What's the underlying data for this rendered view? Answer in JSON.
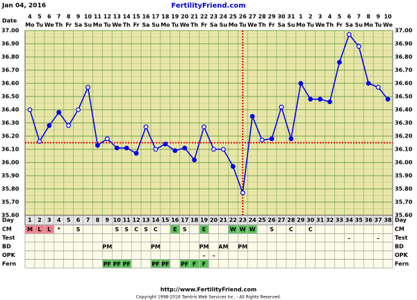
{
  "header": {
    "date": "Jan 04, 2016",
    "site": "FertilityFriend.com"
  },
  "footer": {
    "url": "http://www.FertilityFriend.com",
    "copyright": "Copyright 1998-2016 Tamtris Web Services Inc. - All Rights Reserved."
  },
  "chart_data": {
    "type": "line",
    "date_label": "Date",
    "day_label": "Day",
    "dates": [
      4,
      5,
      6,
      7,
      8,
      9,
      10,
      11,
      12,
      13,
      14,
      15,
      16,
      17,
      18,
      19,
      20,
      21,
      22,
      23,
      24,
      25,
      26,
      27,
      28,
      29,
      30,
      31,
      1,
      2,
      3,
      4,
      5,
      6,
      7,
      8,
      9,
      10
    ],
    "weekdays": [
      "Mo",
      "Tu",
      "We",
      "Th",
      "Fr",
      "Sa",
      "Su",
      "Mo",
      "Tu",
      "We",
      "Th",
      "Fr",
      "Sa",
      "Su",
      "Mo",
      "Tu",
      "We",
      "Th",
      "Fr",
      "Sa",
      "Su",
      "Mo",
      "Tu",
      "We",
      "Th",
      "Fr",
      "Sa",
      "Su",
      "Mo",
      "Tu",
      "We",
      "Th",
      "Fr",
      "Sa",
      "Su",
      "Mo",
      "Tu",
      "We"
    ],
    "categories": [
      1,
      2,
      3,
      4,
      5,
      6,
      7,
      8,
      9,
      10,
      11,
      12,
      13,
      14,
      15,
      16,
      17,
      18,
      19,
      20,
      21,
      22,
      23,
      24,
      25,
      26,
      27,
      28,
      29,
      30,
      31,
      32,
      33,
      34,
      35,
      36,
      37,
      38
    ],
    "series": [
      {
        "color": "#0000ee",
        "values": [
          36.4,
          36.16,
          36.28,
          36.38,
          36.28,
          36.4,
          36.57,
          36.13,
          36.18,
          36.11,
          36.11,
          36.07,
          36.27,
          36.1,
          36.14,
          36.09,
          36.11,
          36.02,
          36.27,
          36.1,
          36.1,
          35.97,
          35.77,
          36.35,
          36.17,
          36.18,
          36.42,
          36.18,
          36.6,
          36.48,
          36.48,
          36.46,
          36.76,
          36.97,
          36.88,
          36.6,
          36.57,
          36.48
        ],
        "hollow": [
          true,
          true,
          false,
          false,
          true,
          true,
          true,
          false,
          true,
          false,
          false,
          false,
          true,
          true,
          false,
          false,
          false,
          false,
          true,
          true,
          true,
          false,
          true,
          false,
          true,
          false,
          true,
          false,
          false,
          false,
          false,
          false,
          false,
          true,
          true,
          false,
          true,
          false
        ]
      }
    ],
    "ylim": [
      35.6,
      37.0
    ],
    "yticks": [
      {
        "value": 35.6,
        "label": "35.60"
      },
      {
        "value": 35.7,
        "label": "35.70"
      },
      {
        "value": 35.8,
        "label": "35.80"
      },
      {
        "value": 35.9,
        "label": "35.90"
      },
      {
        "value": 36.0,
        "label": "36.00"
      },
      {
        "value": 36.1,
        "label": "36.10"
      },
      {
        "value": 36.2,
        "label": "36.20"
      },
      {
        "value": 36.3,
        "label": "36.30"
      },
      {
        "value": 36.4,
        "label": "36.40"
      },
      {
        "value": 36.5,
        "label": "36.50"
      },
      {
        "value": 36.6,
        "label": "36.60"
      },
      {
        "value": 36.7,
        "label": "36.70"
      },
      {
        "value": 36.8,
        "label": "36.80"
      },
      {
        "value": 36.9,
        "label": "36.90"
      },
      {
        "value": 37.0,
        "label": "37.00"
      }
    ],
    "grid": true,
    "coverline": 36.15,
    "coverline_color": "#dd0000",
    "ovulation_day": 23,
    "ovulation_color": "#dd0000",
    "cell_colors": {
      "M": "#f07d8c",
      "L": "#f07d8c",
      "E": "#5cc05c",
      "W": "#5cc05c",
      "PF": "#5cc05c",
      "F": "#5cc05c"
    },
    "rows": [
      {
        "label": "CM",
        "cells": [
          "M",
          "L",
          "L",
          "*",
          null,
          "S",
          null,
          null,
          null,
          "S",
          "S",
          "C",
          "S",
          "C",
          null,
          "E",
          "S",
          null,
          "E",
          null,
          null,
          "W",
          "W",
          "W",
          null,
          "S",
          null,
          "C",
          null,
          "C",
          null,
          null,
          null,
          null,
          null,
          null,
          null,
          null
        ]
      },
      {
        "label": "Test",
        "cells": [
          null,
          null,
          null,
          null,
          null,
          null,
          null,
          null,
          null,
          null,
          null,
          null,
          null,
          null,
          null,
          null,
          null,
          null,
          null,
          null,
          null,
          null,
          null,
          null,
          null,
          null,
          null,
          null,
          null,
          null,
          null,
          null,
          null,
          "–",
          null,
          null,
          "–",
          null
        ]
      },
      {
        "label": "BD",
        "cells": [
          null,
          null,
          null,
          null,
          null,
          null,
          null,
          null,
          "PM",
          null,
          null,
          null,
          null,
          "PM",
          null,
          null,
          null,
          null,
          "PM",
          null,
          "AM",
          null,
          "PM",
          null,
          null,
          null,
          null,
          null,
          null,
          null,
          null,
          null,
          null,
          null,
          null,
          null,
          null,
          null
        ]
      },
      {
        "label": "OPK",
        "cells": [
          null,
          null,
          null,
          null,
          null,
          null,
          null,
          null,
          null,
          null,
          null,
          null,
          null,
          null,
          null,
          null,
          null,
          null,
          "–",
          "–",
          null,
          null,
          null,
          null,
          null,
          null,
          null,
          null,
          null,
          null,
          null,
          null,
          null,
          null,
          null,
          null,
          null,
          null
        ]
      },
      {
        "label": "Fern",
        "cells": [
          null,
          null,
          null,
          null,
          null,
          null,
          null,
          null,
          "PF",
          "PF",
          "PF",
          null,
          null,
          "PF",
          "PF",
          null,
          "PF",
          "F",
          "F",
          null,
          null,
          null,
          null,
          null,
          null,
          null,
          null,
          null,
          null,
          null,
          null,
          null,
          null,
          null,
          null,
          null,
          null,
          null
        ]
      }
    ]
  }
}
